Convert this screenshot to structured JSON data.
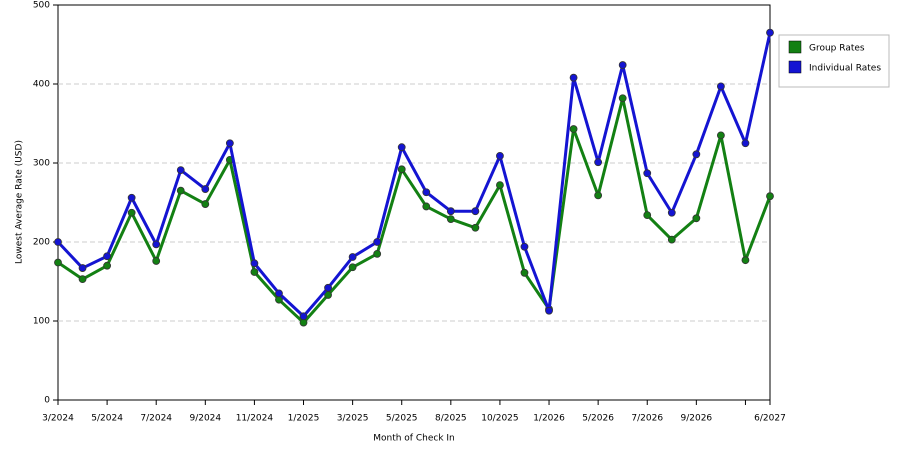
{
  "chart_data": {
    "type": "line",
    "x_label": "Month of Check In",
    "y_label": "Lowest Average Rate (USD)",
    "categories": [
      "3/2024",
      null,
      "5/2024",
      null,
      "7/2024",
      null,
      "9/2024",
      null,
      "11/2024",
      null,
      "1/2025",
      null,
      "3/2025",
      null,
      "5/2025",
      null,
      "8/2025",
      null,
      "10/2025",
      null,
      "1/2026",
      null,
      "5/2026",
      null,
      "7/2026",
      null,
      "9/2026",
      null,
      null,
      "6/2027"
    ],
    "series": [
      {
        "name": "Group Rates",
        "color": "#138013",
        "values": [
          174,
          153,
          170,
          237,
          176,
          265,
          248,
          304,
          162,
          127,
          98,
          133,
          168,
          185,
          292,
          245,
          229,
          218,
          272,
          161,
          115,
          343,
          259,
          382,
          234,
          203,
          230,
          335,
          177,
          258
        ]
      },
      {
        "name": "Individual Rates",
        "color": "#1414d2",
        "values": [
          200,
          167,
          182,
          256,
          197,
          291,
          267,
          325,
          173,
          135,
          106,
          142,
          181,
          200,
          320,
          263,
          239,
          239,
          309,
          194,
          113,
          408,
          301,
          424,
          287,
          237,
          311,
          397,
          325,
          465
        ]
      }
    ],
    "ylim": [
      0,
      500
    ],
    "yticks": [
      0,
      100,
      200,
      300,
      400,
      500
    ],
    "grid": true,
    "legend": "right"
  }
}
